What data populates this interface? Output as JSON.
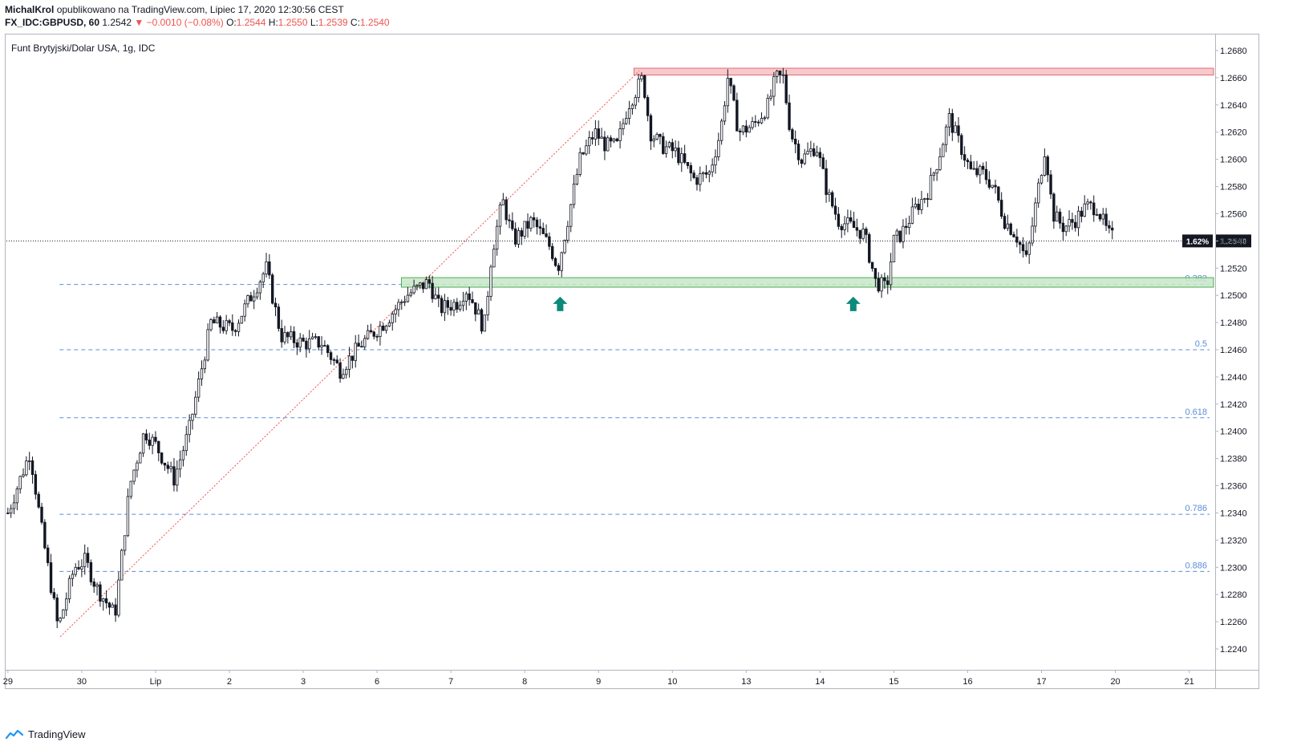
{
  "header": {
    "author": "MichalKrol",
    "published": "opublikowano na TradingView.com, Lipiec 17, 2020 12:30:56 CEST",
    "symbol": "FX_IDC:GBPUSD, 60",
    "last": "1.2542",
    "change": "−0.0010 (−0.08%)",
    "o_label": "O:",
    "o_val": "1.2544",
    "h_label": "H:",
    "h_val": "1.2550",
    "l_label": "L:",
    "l_val": "1.2539",
    "c_label": "C:",
    "c_val": "1.2540",
    "change_color": "#ef5350"
  },
  "footer": {
    "brand": "TradingView",
    "logo_icon": "tradingview-logo-icon"
  },
  "chart_data": {
    "type": "candlestick",
    "title": "Funt Brytyjski/Dolar USA, 1g, IDC",
    "ylim": [
      1.223,
      1.269
    ],
    "y_ticks": [
      "1.2680",
      "1.2660",
      "1.2640",
      "1.2620",
      "1.2600",
      "1.2580",
      "1.2560",
      "1.2540",
      "1.2520",
      "1.2500",
      "1.2480",
      "1.2460",
      "1.2440",
      "1.2420",
      "1.2400",
      "1.2380",
      "1.2360",
      "1.2340",
      "1.2320",
      "1.2300",
      "1.2280",
      "1.2260",
      "1.2240"
    ],
    "x_ticks": [
      "29",
      "30",
      "Lip",
      "2",
      "3",
      "6",
      "7",
      "8",
      "9",
      "10",
      "13",
      "14",
      "15",
      "16",
      "17",
      "20",
      "21"
    ],
    "x_tick_index": [
      0,
      1,
      2,
      3,
      4,
      5,
      6,
      7,
      8,
      9,
      10,
      11,
      12,
      13,
      14,
      15,
      16
    ],
    "x_range": [
      -0.02,
      16.33
    ],
    "price_path": [
      [
        0.0,
        1.234
      ],
      [
        0.3,
        1.2385
      ],
      [
        0.45,
        1.233
      ],
      [
        0.68,
        1.2255
      ],
      [
        0.9,
        1.23
      ],
      [
        1.05,
        1.2305
      ],
      [
        1.2,
        1.2285
      ],
      [
        1.45,
        1.2265
      ],
      [
        1.65,
        1.236
      ],
      [
        1.85,
        1.24
      ],
      [
        2.0,
        1.239
      ],
      [
        2.25,
        1.2365
      ],
      [
        2.45,
        1.24
      ],
      [
        2.75,
        1.248
      ],
      [
        3.05,
        1.2475
      ],
      [
        3.3,
        1.25
      ],
      [
        3.5,
        1.252
      ],
      [
        3.7,
        1.247
      ],
      [
        4.0,
        1.2465
      ],
      [
        4.25,
        1.2465
      ],
      [
        4.5,
        1.2445
      ],
      [
        4.8,
        1.2465
      ],
      [
        5.1,
        1.248
      ],
      [
        5.4,
        1.25
      ],
      [
        5.7,
        1.251
      ],
      [
        5.85,
        1.249
      ],
      [
        6.1,
        1.2495
      ],
      [
        6.2,
        1.2505
      ],
      [
        6.3,
        1.2495
      ],
      [
        6.45,
        1.2475
      ],
      [
        6.55,
        1.253
      ],
      [
        6.7,
        1.257
      ],
      [
        6.85,
        1.254
      ],
      [
        7.1,
        1.2555
      ],
      [
        7.35,
        1.2535
      ],
      [
        7.45,
        1.252
      ],
      [
        7.6,
        1.256
      ],
      [
        7.75,
        1.26
      ],
      [
        7.95,
        1.262
      ],
      [
        8.1,
        1.261
      ],
      [
        8.25,
        1.261
      ],
      [
        8.4,
        1.264
      ],
      [
        8.6,
        1.266
      ],
      [
        8.7,
        1.262
      ],
      [
        8.85,
        1.261
      ],
      [
        9.05,
        1.2605
      ],
      [
        9.3,
        1.2585
      ],
      [
        9.5,
        1.259
      ],
      [
        9.65,
        1.262
      ],
      [
        9.75,
        1.266
      ],
      [
        9.9,
        1.262
      ],
      [
        10.1,
        1.2625
      ],
      [
        10.3,
        1.264
      ],
      [
        10.4,
        1.266
      ],
      [
        10.5,
        1.266
      ],
      [
        10.6,
        1.262
      ],
      [
        10.75,
        1.26
      ],
      [
        10.95,
        1.261
      ],
      [
        11.1,
        1.2575
      ],
      [
        11.25,
        1.2555
      ],
      [
        11.45,
        1.255
      ],
      [
        11.6,
        1.2545
      ],
      [
        11.75,
        1.251
      ],
      [
        11.9,
        1.2505
      ],
      [
        12.0,
        1.254
      ],
      [
        12.1,
        1.2545
      ],
      [
        12.3,
        1.2565
      ],
      [
        12.45,
        1.2575
      ],
      [
        12.6,
        1.26
      ],
      [
        12.75,
        1.263
      ],
      [
        12.9,
        1.261
      ],
      [
        13.05,
        1.259
      ],
      [
        13.2,
        1.259
      ],
      [
        13.35,
        1.258
      ],
      [
        13.5,
        1.2555
      ],
      [
        13.65,
        1.2545
      ],
      [
        13.8,
        1.2525
      ],
      [
        13.9,
        1.256
      ],
      [
        14.05,
        1.261
      ],
      [
        14.15,
        1.256
      ],
      [
        14.3,
        1.255
      ],
      [
        14.45,
        1.2555
      ],
      [
        14.6,
        1.2565
      ],
      [
        14.75,
        1.2565
      ],
      [
        14.9,
        1.2545
      ],
      [
        14.98,
        1.2542
      ]
    ],
    "last_price": 1.254,
    "last_price_label": "1.2540",
    "last_change_label": "1.62%",
    "resistance_zone": [
      1.2662,
      1.2667
    ],
    "support_zone": [
      1.2506,
      1.2513
    ],
    "trendline": {
      "from": [
        0.71,
        1.2249
      ],
      "to": [
        8.55,
        1.2665
      ]
    },
    "arrows": [
      {
        "x": 7.48,
        "y": 1.2499
      },
      {
        "x": 11.45,
        "y": 1.2499
      }
    ],
    "fib_levels": [
      {
        "label": "0.382",
        "price": 1.2508
      },
      {
        "label": "0.5",
        "price": 1.246
      },
      {
        "label": "0.618",
        "price": 1.241
      },
      {
        "label": "0.786",
        "price": 1.2339
      },
      {
        "label": "0.886",
        "price": 1.2297
      }
    ],
    "colors": {
      "candle": "#131722",
      "fib": "#5b8dd9",
      "fib_label": "#5b8dd9",
      "resistance_fill": "#f8c9cc",
      "resistance_stroke": "#e06a72",
      "support_fill": "#c8e6c9",
      "support_stroke": "#4caf50",
      "trend": "#ef5350",
      "arrow": "#0b8a7a",
      "axis_text": "#131722",
      "last_label_bg": "#131722"
    }
  }
}
